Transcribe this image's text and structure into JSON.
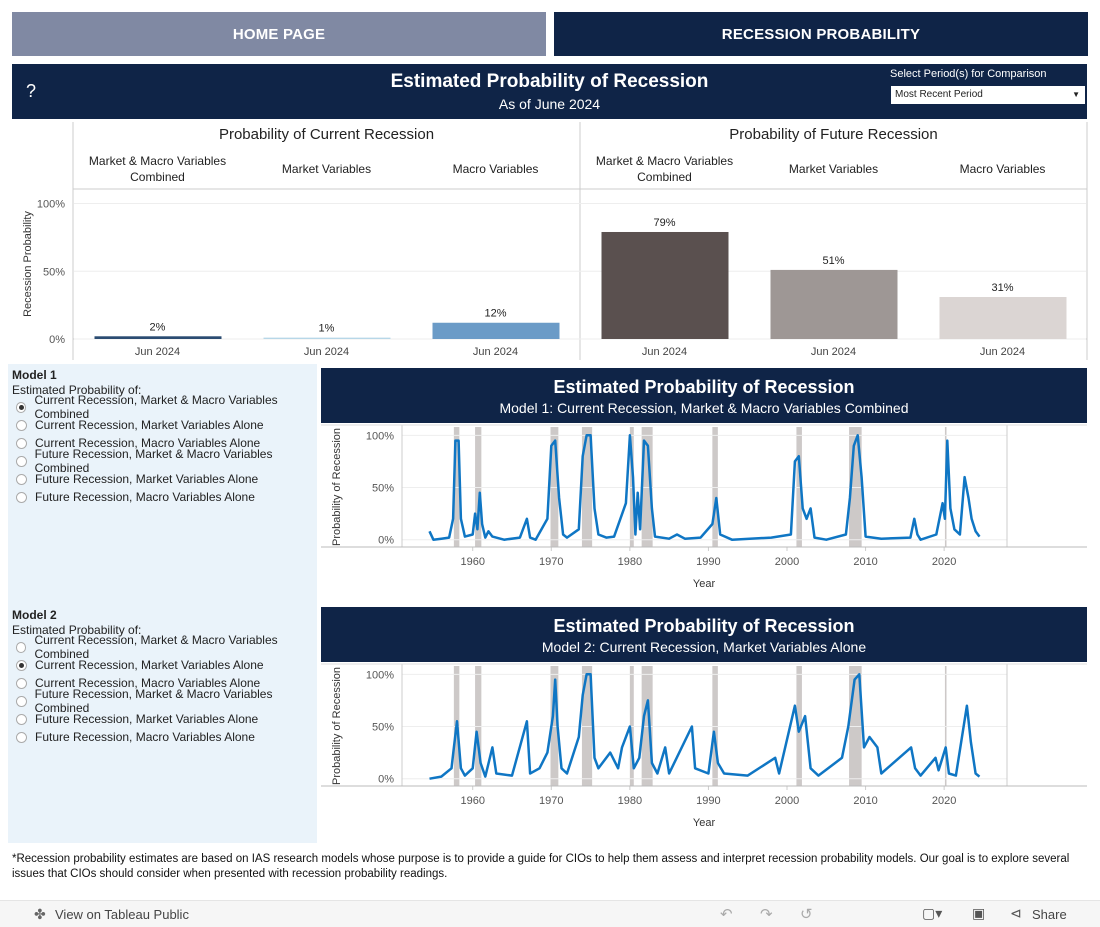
{
  "nav": {
    "home": "HOME PAGE",
    "current": "RECESSION PROBABILITY"
  },
  "header": {
    "help": "?",
    "title": "Estimated Probability of Recession",
    "subtitle": "As of June 2024",
    "period_label": "Select Period(s) for Comparison",
    "period_value": "Most Recent Period"
  },
  "chart_data": [
    {
      "type": "bar",
      "y_label": "Recession Probability",
      "ylim": [
        0,
        110
      ],
      "yticks": [
        {
          "value": 0,
          "label": "0%"
        },
        {
          "value": 50,
          "label": "50%"
        },
        {
          "value": 100,
          "label": "100%"
        }
      ],
      "grid": true,
      "groups": [
        {
          "title": "Probability of Current Recession",
          "categories": [
            "Market & Macro Variables Combined",
            "Market Variables",
            "Macro Variables"
          ],
          "x_labels": [
            "Jun 2024",
            "Jun 2024",
            "Jun 2024"
          ],
          "values": [
            2,
            1,
            12
          ],
          "value_labels": [
            "2%",
            "1%",
            "12%"
          ],
          "colors": [
            "#2b4c72",
            "#b7d7e8",
            "#6b9bc7"
          ]
        },
        {
          "title": "Probability of Future Recession",
          "categories": [
            "Market & Macro Variables Combined",
            "Market Variables",
            "Macro Variables"
          ],
          "x_labels": [
            "Jun 2024",
            "Jun 2024",
            "Jun 2024"
          ],
          "values": [
            79,
            51,
            31
          ],
          "value_labels": [
            "79%",
            "51%",
            "31%"
          ],
          "colors": [
            "#5a504f",
            "#9e9795",
            "#dbd5d3"
          ]
        }
      ]
    },
    {
      "type": "line",
      "title": "Estimated Probability of Recession",
      "subtitle": "Model 1: Current Recession, Market & Macro Variables Combined",
      "x_label": "Year",
      "y_label": "Probability of Recession",
      "xlim": [
        1951,
        2028
      ],
      "xticks": [
        1960,
        1970,
        1980,
        1990,
        2000,
        2010,
        2020
      ],
      "ylim": [
        -7,
        108
      ],
      "yticks": [
        {
          "value": 0,
          "label": "0%"
        },
        {
          "value": 50,
          "label": "50%"
        },
        {
          "value": 100,
          "label": "100%"
        }
      ],
      "grid": true,
      "recession_color": "#cdc9c8",
      "recessions": [
        [
          1957.6,
          1958.3
        ],
        [
          1960.3,
          1961.1
        ],
        [
          1969.9,
          1970.9
        ],
        [
          1973.9,
          1975.2
        ],
        [
          1980.0,
          1980.5
        ],
        [
          1981.5,
          1982.9
        ],
        [
          1990.5,
          1991.2
        ],
        [
          2001.2,
          2001.9
        ],
        [
          2007.9,
          2009.5
        ],
        [
          2020.1,
          2020.3
        ]
      ],
      "series": [
        {
          "name": "Model 1",
          "color": "#0f76c4",
          "x": [
            1954.5,
            1955,
            1956,
            1957,
            1957.5,
            1957.8,
            1958.2,
            1958.5,
            1959,
            1960,
            1960.3,
            1960.6,
            1960.9,
            1961.2,
            1961.6,
            1962,
            1962.5,
            1964,
            1966,
            1966.9,
            1967.3,
            1968,
            1969.5,
            1970,
            1970.5,
            1971,
            1971.5,
            1972,
            1973.5,
            1974,
            1974.5,
            1975,
            1975.5,
            1976,
            1977,
            1978,
            1979.5,
            1980,
            1980.4,
            1980.7,
            1981,
            1981.3,
            1981.8,
            1982.3,
            1982.8,
            1983.2,
            1985,
            1986,
            1987,
            1989,
            1990.5,
            1991,
            1991.5,
            1993,
            1998,
            2000.5,
            2001,
            2001.5,
            2002,
            2002.5,
            2003,
            2003.5,
            2005,
            2007.5,
            2008,
            2008.5,
            2009,
            2009.5,
            2010,
            2012,
            2015.7,
            2016.2,
            2016.6,
            2017,
            2019,
            2019.8,
            2020.1,
            2020.4,
            2020.8,
            2021.3,
            2022,
            2022.6,
            2023.1,
            2023.5,
            2024,
            2024.5
          ],
          "values": [
            8,
            0,
            1,
            2,
            20,
            95,
            95,
            20,
            3,
            5,
            25,
            10,
            45,
            15,
            2,
            8,
            3,
            0,
            2,
            20,
            2,
            0,
            20,
            90,
            95,
            40,
            5,
            2,
            10,
            80,
            100,
            100,
            30,
            5,
            2,
            3,
            35,
            100,
            60,
            5,
            45,
            10,
            95,
            90,
            30,
            3,
            1,
            5,
            1,
            2,
            15,
            40,
            5,
            0,
            2,
            5,
            75,
            80,
            30,
            20,
            30,
            2,
            0,
            5,
            40,
            90,
            100,
            60,
            3,
            1,
            2,
            20,
            5,
            0,
            5,
            35,
            20,
            95,
            30,
            10,
            5,
            60,
            40,
            20,
            8,
            3
          ]
        }
      ]
    },
    {
      "type": "line",
      "title": "Estimated Probability of Recession",
      "subtitle": "Model 2: Current Recession, Market Variables Alone",
      "x_label": "Year",
      "y_label": "Probability of Recession",
      "xlim": [
        1951,
        2028
      ],
      "xticks": [
        1960,
        1970,
        1980,
        1990,
        2000,
        2010,
        2020
      ],
      "ylim": [
        -7,
        108
      ],
      "yticks": [
        {
          "value": 0,
          "label": "0%"
        },
        {
          "value": 50,
          "label": "50%"
        },
        {
          "value": 100,
          "label": "100%"
        }
      ],
      "grid": true,
      "recession_color": "#cdc9c8",
      "recessions": [
        [
          1957.6,
          1958.3
        ],
        [
          1960.3,
          1961.1
        ],
        [
          1969.9,
          1970.9
        ],
        [
          1973.9,
          1975.2
        ],
        [
          1980.0,
          1980.5
        ],
        [
          1981.5,
          1982.9
        ],
        [
          1990.5,
          1991.2
        ],
        [
          2001.2,
          2001.9
        ],
        [
          2007.9,
          2009.5
        ],
        [
          2020.1,
          2020.3
        ]
      ],
      "series": [
        {
          "name": "Model 2",
          "color": "#0f76c4",
          "x": [
            1954.5,
            1956,
            1957.3,
            1957.6,
            1958,
            1958.5,
            1959,
            1960,
            1960.5,
            1961,
            1961.6,
            1962.5,
            1963,
            1965,
            1966.9,
            1967.3,
            1968.5,
            1969.5,
            1970.2,
            1970.5,
            1970.8,
            1971.3,
            1972,
            1973.5,
            1974,
            1974.5,
            1975,
            1975.5,
            1976,
            1977.5,
            1978.5,
            1979,
            1980,
            1980.5,
            1981.2,
            1981.8,
            1982.3,
            1982.8,
            1983.5,
            1984.5,
            1985,
            1987.9,
            1988.3,
            1990,
            1990.7,
            1991.2,
            1992,
            1995,
            1998.5,
            1999,
            2001,
            2001.5,
            2002.3,
            2003,
            2004,
            2007,
            2007.8,
            2008.6,
            2009.2,
            2009.8,
            2010.5,
            2011.5,
            2012,
            2015.8,
            2016.3,
            2017,
            2018.9,
            2019.3,
            2020.2,
            2020.6,
            2021.5,
            2022.9,
            2023.4,
            2024,
            2024.5
          ],
          "values": [
            0,
            2,
            10,
            30,
            55,
            10,
            3,
            10,
            45,
            15,
            2,
            30,
            5,
            3,
            55,
            5,
            10,
            25,
            60,
            95,
            50,
            10,
            5,
            40,
            80,
            100,
            100,
            20,
            10,
            25,
            10,
            30,
            50,
            10,
            20,
            60,
            75,
            15,
            5,
            30,
            5,
            50,
            10,
            5,
            45,
            15,
            5,
            3,
            20,
            5,
            70,
            45,
            60,
            10,
            3,
            20,
            50,
            95,
            100,
            30,
            40,
            30,
            5,
            30,
            10,
            3,
            20,
            8,
            30,
            5,
            3,
            70,
            35,
            5,
            2
          ]
        }
      ]
    }
  ],
  "selectors": [
    {
      "title": "Model 1",
      "subtitle": "Estimated Probability of:",
      "selected": 0,
      "options": [
        "Current Recession, Market & Macro Variables Combined",
        "Current Recession, Market Variables Alone",
        "Current Recession, Macro Variables Alone",
        "Future Recession, Market & Macro Variables Combined",
        "Future Recession, Market Variables Alone",
        "Future Recession, Macro Variables Alone"
      ]
    },
    {
      "title": "Model 2",
      "subtitle": "Estimated Probability of:",
      "selected": 1,
      "options": [
        "Current Recession, Market & Macro Variables Combined",
        "Current Recession, Market Variables Alone",
        "Current Recession, Macro Variables Alone",
        "Future Recession, Market & Macro Variables Combined",
        "Future Recession, Market Variables Alone",
        "Future Recession, Macro Variables Alone"
      ]
    }
  ],
  "footnote": "*Recession probability estimates are based on IAS research models whose purpose is to provide a guide for CIOs to help them assess and interpret recession probability models.  Our goal is to explore several issues that CIOs should consider when presented with recession probability readings.",
  "toolbar": {
    "view": "View on Tableau Public",
    "share": "Share"
  }
}
